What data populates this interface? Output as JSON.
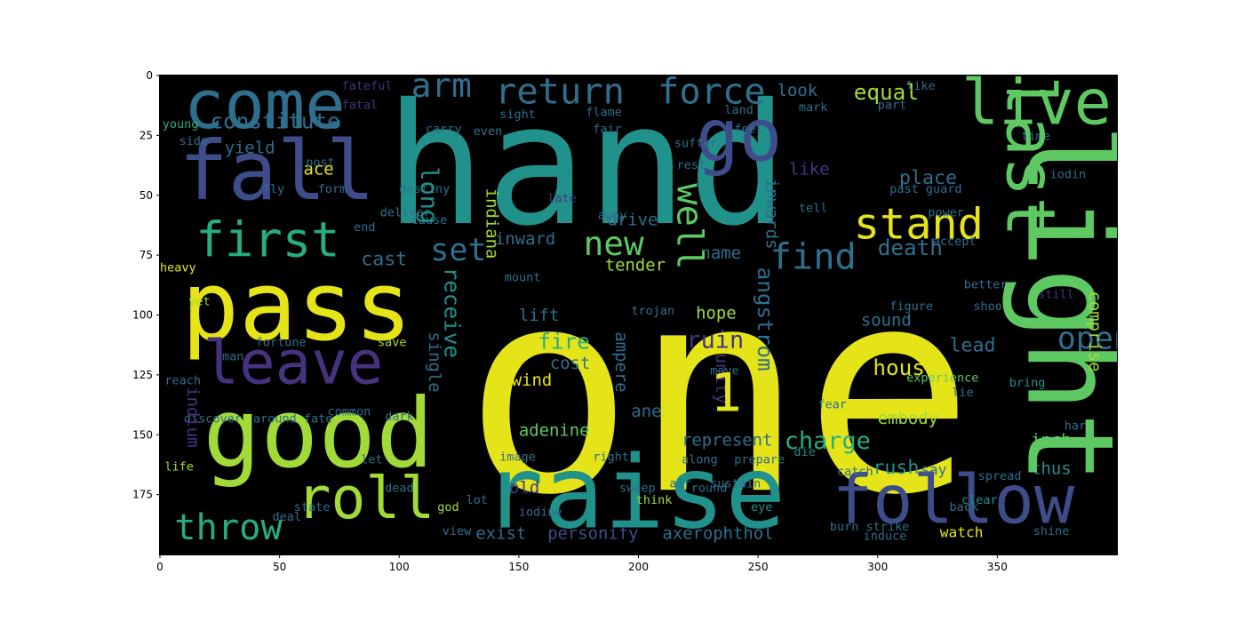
{
  "chart_data": {
    "type": "wordcloud",
    "title": "",
    "xlabel": "",
    "ylabel": "",
    "xlim": [
      0,
      400
    ],
    "ylim": [
      200,
      0
    ],
    "x_ticks": [
      0,
      50,
      100,
      150,
      200,
      250,
      300,
      350
    ],
    "y_ticks": [
      0,
      25,
      50,
      75,
      100,
      125,
      150,
      175
    ],
    "background_color": "#000000",
    "words": [
      {
        "text": "hand",
        "x": 94,
        "y": 7,
        "size": 70,
        "color": "#21918c"
      },
      {
        "text": "one",
        "x": 127,
        "y": 81,
        "size": 118,
        "color": "#e5e419"
      },
      {
        "text": "pass",
        "x": 9,
        "y": 79,
        "size": 40,
        "color": "#e5e419"
      },
      {
        "text": "good",
        "x": 18,
        "y": 132,
        "size": 40,
        "color": "#a2da37"
      },
      {
        "text": "raise",
        "x": 135,
        "y": 156,
        "size": 42,
        "color": "#21918c"
      },
      {
        "text": "fall",
        "x": 8,
        "y": 25,
        "size": 34,
        "color": "#3e4c8a"
      },
      {
        "text": "come",
        "x": 10,
        "y": 0,
        "size": 28,
        "color": "#2e6f8e"
      },
      {
        "text": "go",
        "x": 224,
        "y": 12,
        "size": 30,
        "color": "#3e4c8a"
      },
      {
        "text": "live",
        "x": 335,
        "y": 0,
        "size": 26,
        "color": "#5ec962"
      },
      {
        "text": "leave",
        "x": 18,
        "y": 109,
        "size": 25,
        "color": "#46337f"
      },
      {
        "text": "first",
        "x": 15,
        "y": 60,
        "size": 20,
        "color": "#27ad81"
      },
      {
        "text": "roll",
        "x": 57,
        "y": 166,
        "size": 24,
        "color": "#a2da37"
      },
      {
        "text": "follow",
        "x": 281,
        "y": 165,
        "size": 28,
        "color": "#3e4c8a"
      },
      {
        "text": "throw",
        "x": 6,
        "y": 182,
        "size": 15,
        "color": "#27ad81"
      },
      {
        "text": "return",
        "x": 140,
        "y": 0,
        "size": 15,
        "color": "#2e6f8e"
      },
      {
        "text": "force",
        "x": 208,
        "y": 0,
        "size": 15,
        "color": "#2e6f8e"
      },
      {
        "text": "arm",
        "x": 105,
        "y": -2,
        "size": 14,
        "color": "#2e6f8e"
      },
      {
        "text": "constitute",
        "x": 21,
        "y": 15,
        "size": 9,
        "color": "#2e6f8e"
      },
      {
        "text": "stand",
        "x": 290,
        "y": 54,
        "size": 18,
        "color": "#e5e419"
      },
      {
        "text": "equal",
        "x": 290,
        "y": 3,
        "size": 9,
        "color": "#a2da37"
      },
      {
        "text": "look",
        "x": 258,
        "y": 3,
        "size": 7,
        "color": "#2e6f8e"
      },
      {
        "text": "find",
        "x": 255,
        "y": 69,
        "size": 15,
        "color": "#2e6f8e"
      },
      {
        "text": "new",
        "x": 177,
        "y": 64,
        "size": 14,
        "color": "#5ec962"
      },
      {
        "text": "set",
        "x": 113,
        "y": 67,
        "size": 13,
        "color": "#2e6f8e"
      },
      {
        "text": "cast",
        "x": 84,
        "y": 73,
        "size": 8,
        "color": "#2e6f8e"
      },
      {
        "text": "death",
        "x": 300,
        "y": 68,
        "size": 9,
        "color": "#2e6f8e"
      },
      {
        "text": "open",
        "x": 375,
        "y": 104,
        "size": 13,
        "color": "#2e6f8e"
      },
      {
        "text": "house",
        "x": 298,
        "y": 118,
        "size": 9,
        "color": "#e5e419"
      },
      {
        "text": "charge",
        "x": 261,
        "y": 148,
        "size": 10,
        "color": "#27ad81"
      },
      {
        "text": "fire",
        "x": 158,
        "y": 107,
        "size": 9,
        "color": "#27ad81"
      },
      {
        "text": "ruin",
        "x": 220,
        "y": 106,
        "size": 10,
        "color": "#46337f"
      },
      {
        "text": "wind",
        "x": 147,
        "y": 124,
        "size": 7,
        "color": "#e5e419"
      },
      {
        "text": "cost",
        "x": 163,
        "y": 117,
        "size": 7,
        "color": "#2e6f8e"
      },
      {
        "text": "lift",
        "x": 150,
        "y": 97,
        "size": 7,
        "color": "#2e6f8e"
      },
      {
        "text": "sound",
        "x": 293,
        "y": 99,
        "size": 7,
        "color": "#2e6f8e"
      },
      {
        "text": "hope",
        "x": 224,
        "y": 96,
        "size": 7,
        "color": "#a2da37"
      },
      {
        "text": "lead",
        "x": 330,
        "y": 109,
        "size": 8,
        "color": "#2e6f8e"
      },
      {
        "text": "embody",
        "x": 300,
        "y": 140,
        "size": 7,
        "color": "#a2da37"
      },
      {
        "text": "inch",
        "x": 364,
        "y": 149,
        "size": 7,
        "color": "#5ec962"
      },
      {
        "text": "thus",
        "x": 364,
        "y": 161,
        "size": 7,
        "color": "#21918c"
      },
      {
        "text": "rush",
        "x": 298,
        "y": 160,
        "size": 8,
        "color": "#21918c"
      },
      {
        "text": "represent",
        "x": 218,
        "y": 149,
        "size": 7,
        "color": "#2e6f8e"
      },
      {
        "text": "adenine",
        "x": 150,
        "y": 145,
        "size": 7,
        "color": "#5ec962"
      },
      {
        "text": "exist",
        "x": 132,
        "y": 188,
        "size": 7,
        "color": "#2e6f8e"
      },
      {
        "text": "personify",
        "x": 162,
        "y": 188,
        "size": 7,
        "color": "#3e4c8a"
      },
      {
        "text": "axerophthol",
        "x": 210,
        "y": 188,
        "size": 7,
        "color": "#2e6f8e"
      },
      {
        "text": "old",
        "x": 146,
        "y": 169,
        "size": 7,
        "color": "#46337f"
      },
      {
        "text": "tender",
        "x": 186,
        "y": 76,
        "size": 7,
        "color": "#a2da37"
      },
      {
        "text": "name",
        "x": 226,
        "y": 71,
        "size": 7,
        "color": "#2e6f8e"
      },
      {
        "text": "place",
        "x": 309,
        "y": 39,
        "size": 8,
        "color": "#2e6f8e"
      },
      {
        "text": "like",
        "x": 263,
        "y": 36,
        "size": 7,
        "color": "#46337f"
      },
      {
        "text": "ace",
        "x": 60,
        "y": 36,
        "size": 7,
        "color": "#e5e419"
      },
      {
        "text": "yield",
        "x": 27,
        "y": 27,
        "size": 7,
        "color": "#2e6f8e"
      },
      {
        "text": "inward",
        "x": 140,
        "y": 65,
        "size": 7,
        "color": "#2e6f8e"
      },
      {
        "text": "drive",
        "x": 187,
        "y": 57,
        "size": 7,
        "color": "#2e6f8e"
      },
      {
        "text": "ane",
        "x": 197,
        "y": 137,
        "size": 7,
        "color": "#2e6f8e"
      },
      {
        "text": "watch",
        "x": 326,
        "y": 188,
        "size": 6,
        "color": "#e5e419"
      },
      {
        "text": "shine",
        "x": 365,
        "y": 188,
        "size": 5,
        "color": "#2e6f8e"
      },
      {
        "text": "say",
        "x": 318,
        "y": 162,
        "size": 6,
        "color": "#2e6f8e"
      },
      {
        "text": "spread",
        "x": 342,
        "y": 165,
        "size": 5,
        "color": "#2e6f8e"
      },
      {
        "text": "clear",
        "x": 335,
        "y": 175,
        "size": 5,
        "color": "#21918c"
      },
      {
        "text": "back",
        "x": 330,
        "y": 178,
        "size": 5,
        "color": "#2e6f8e"
      },
      {
        "text": "bring",
        "x": 355,
        "y": 126,
        "size": 5,
        "color": "#21918c"
      },
      {
        "text": "hard",
        "x": 378,
        "y": 144,
        "size": 5,
        "color": "#2e6f8e"
      },
      {
        "text": "lie",
        "x": 331,
        "y": 130,
        "size": 5,
        "color": "#2e6f8e"
      },
      {
        "text": "experience",
        "x": 312,
        "y": 124,
        "size": 5,
        "color": "#5ec962"
      },
      {
        "text": "fear",
        "x": 275,
        "y": 135,
        "size": 5,
        "color": "#2e6f8e"
      },
      {
        "text": "die",
        "x": 265,
        "y": 155,
        "size": 5,
        "color": "#21918c"
      },
      {
        "text": "catch",
        "x": 283,
        "y": 163,
        "size": 5,
        "color": "#2e6f8e"
      },
      {
        "text": "eye",
        "x": 247,
        "y": 178,
        "size": 5,
        "color": "#21918c"
      },
      {
        "text": "think",
        "x": 199,
        "y": 175,
        "size": 5,
        "color": "#a2da37"
      },
      {
        "text": "god",
        "x": 116,
        "y": 178,
        "size": 5,
        "color": "#a2da37"
      },
      {
        "text": "dead",
        "x": 94,
        "y": 170,
        "size": 5,
        "color": "#2e6f8e"
      },
      {
        "text": "state",
        "x": 56,
        "y": 178,
        "size": 5,
        "color": "#2e6f8e"
      },
      {
        "text": "deal",
        "x": 47,
        "y": 182,
        "size": 5,
        "color": "#2e6f8e"
      },
      {
        "text": "life",
        "x": 2,
        "y": 161,
        "size": 5,
        "color": "#a2da37"
      },
      {
        "text": "common",
        "x": 70,
        "y": 138,
        "size": 5,
        "color": "#2e6f8e"
      },
      {
        "text": "dark",
        "x": 94,
        "y": 140,
        "size": 5,
        "color": "#2e6f8e"
      },
      {
        "text": "discover",
        "x": 10,
        "y": 141,
        "size": 5,
        "color": "#2e6f8e"
      },
      {
        "text": "around fate",
        "x": 39,
        "y": 141,
        "size": 5,
        "color": "#2e6f8e"
      },
      {
        "text": "fortune",
        "x": 40,
        "y": 109,
        "size": 5,
        "color": "#2e6f8e"
      },
      {
        "text": "save",
        "x": 91,
        "y": 109,
        "size": 5,
        "color": "#a2da37"
      },
      {
        "text": "reach",
        "x": 2,
        "y": 125,
        "size": 5,
        "color": "#2e6f8e"
      },
      {
        "text": "heavy",
        "x": 0,
        "y": 78,
        "size": 5,
        "color": "#e5e419"
      },
      {
        "text": "fly",
        "x": 43,
        "y": 45,
        "size": 5,
        "color": "#2e6f8e"
      },
      {
        "text": "post",
        "x": 61,
        "y": 34,
        "size": 5,
        "color": "#2e6f8e"
      },
      {
        "text": "form",
        "x": 66,
        "y": 45,
        "size": 5,
        "color": "#2e6f8e"
      },
      {
        "text": "side",
        "x": 8,
        "y": 25,
        "size": 5,
        "color": "#2e6f8e"
      },
      {
        "text": "young",
        "x": 1,
        "y": 18,
        "size": 5,
        "color": "#27ad81"
      },
      {
        "text": "carry",
        "x": 111,
        "y": 20,
        "size": 5,
        "color": "#2e6f8e"
      },
      {
        "text": "even",
        "x": 131,
        "y": 21,
        "size": 5,
        "color": "#2e6f8e"
      },
      {
        "text": "sight",
        "x": 142,
        "y": 14,
        "size": 5,
        "color": "#2e6f8e"
      },
      {
        "text": "flame",
        "x": 178,
        "y": 13,
        "size": 5,
        "color": "#2e6f8e"
      },
      {
        "text": "fair",
        "x": 181,
        "y": 20,
        "size": 5,
        "color": "#2e6f8e"
      },
      {
        "text": "land",
        "x": 236,
        "y": 12,
        "size": 5,
        "color": "#2e6f8e"
      },
      {
        "text": "feel",
        "x": 240,
        "y": 20,
        "size": 5,
        "color": "#2e6f8e"
      },
      {
        "text": "mark",
        "x": 267,
        "y": 11,
        "size": 5,
        "color": "#2e6f8e"
      },
      {
        "text": "part",
        "x": 300,
        "y": 10,
        "size": 5,
        "color": "#2e6f8e"
      },
      {
        "text": "time",
        "x": 360,
        "y": 23,
        "size": 5,
        "color": "#2e6f8e"
      },
      {
        "text": "rest",
        "x": 216,
        "y": 35,
        "size": 5,
        "color": "#2e6f8e"
      },
      {
        "text": "suffer",
        "x": 215,
        "y": 26,
        "size": 5,
        "color": "#2e6f8e"
      },
      {
        "text": "late",
        "x": 162,
        "y": 49,
        "size": 5,
        "color": "#46337f"
      },
      {
        "text": "away",
        "x": 183,
        "y": 56,
        "size": 5,
        "color": "#2e6f8e"
      },
      {
        "text": "tell",
        "x": 267,
        "y": 53,
        "size": 5,
        "color": "#2e6f8e"
      },
      {
        "text": "power",
        "x": 321,
        "y": 55,
        "size": 5,
        "color": "#2e6f8e"
      },
      {
        "text": "past guard",
        "x": 305,
        "y": 45,
        "size": 5,
        "color": "#2e6f8e"
      },
      {
        "text": "accept",
        "x": 323,
        "y": 67,
        "size": 5,
        "color": "#2e6f8e"
      },
      {
        "text": "better",
        "x": 336,
        "y": 85,
        "size": 5,
        "color": "#2e6f8e"
      },
      {
        "text": "shoot",
        "x": 340,
        "y": 94,
        "size": 5,
        "color": "#2e6f8e"
      },
      {
        "text": "still",
        "x": 367,
        "y": 89,
        "size": 5,
        "color": "#46337f"
      },
      {
        "text": "figure",
        "x": 305,
        "y": 94,
        "size": 5,
        "color": "#2e6f8e"
      },
      {
        "text": "trojan",
        "x": 197,
        "y": 96,
        "size": 5,
        "color": "#2e6f8e"
      },
      {
        "text": "mount",
        "x": 144,
        "y": 82,
        "size": 5,
        "color": "#2e6f8e"
      },
      {
        "text": "move",
        "x": 230,
        "y": 121,
        "size": 5,
        "color": "#2e6f8e"
      },
      {
        "text": "image",
        "x": 142,
        "y": 157,
        "size": 5,
        "color": "#2e6f8e"
      },
      {
        "text": "right",
        "x": 181,
        "y": 157,
        "size": 5,
        "color": "#2e6f8e"
      },
      {
        "text": "along",
        "x": 218,
        "y": 158,
        "size": 5,
        "color": "#2e6f8e"
      },
      {
        "text": "lot",
        "x": 128,
        "y": 175,
        "size": 5,
        "color": "#2e6f8e"
      },
      {
        "text": "iodine",
        "x": 150,
        "y": 180,
        "size": 5,
        "color": "#2e6f8e"
      },
      {
        "text": "view",
        "x": 118,
        "y": 188,
        "size": 5,
        "color": "#2e6f8e"
      },
      {
        "text": "induce",
        "x": 294,
        "y": 190,
        "size": 5,
        "color": "#2e6f8e"
      },
      {
        "text": "burn strike",
        "x": 280,
        "y": 186,
        "size": 5,
        "color": "#2e6f8e"
      },
      {
        "text": "let",
        "x": 84,
        "y": 158,
        "size": 5,
        "color": "#2e6f8e"
      },
      {
        "text": "man",
        "x": 26,
        "y": 115,
        "size": 5,
        "color": "#2e6f8e"
      },
      {
        "text": "yet",
        "x": 12,
        "y": 92,
        "size": 5,
        "color": "#a2da37"
      },
      {
        "text": "end",
        "x": 81,
        "y": 61,
        "size": 5,
        "color": "#2e6f8e"
      },
      {
        "text": "cause",
        "x": 105,
        "y": 58,
        "size": 5,
        "color": "#2e6f8e"
      },
      {
        "text": "deliver",
        "x": 92,
        "y": 55,
        "size": 5,
        "color": "#2e6f8e"
      },
      {
        "text": "destiny",
        "x": 100,
        "y": 45,
        "size": 5,
        "color": "#2e6f8e"
      },
      {
        "text": "fatal",
        "x": 76,
        "y": 10,
        "size": 5,
        "color": "#46337f"
      },
      {
        "text": "fateful",
        "x": 76,
        "y": 2,
        "size": 5,
        "color": "#46337f"
      },
      {
        "text": "prepare",
        "x": 240,
        "y": 158,
        "size": 5,
        "color": "#2e6f8e"
      },
      {
        "text": "sustain",
        "x": 230,
        "y": 168,
        "size": 5,
        "color": "#2e6f8e"
      },
      {
        "text": "round",
        "x": 222,
        "y": 170,
        "size": 5,
        "color": "#2e6f8e"
      },
      {
        "text": "air",
        "x": 213,
        "y": 168,
        "size": 5,
        "color": "#2e6f8e"
      },
      {
        "text": "sweep",
        "x": 192,
        "y": 170,
        "size": 5,
        "color": "#2e6f8e"
      },
      {
        "text": "iodin",
        "x": 372,
        "y": 39,
        "size": 5,
        "color": "#2e6f8e"
      },
      {
        "text": "like",
        "x": 312,
        "y": 2,
        "size": 5,
        "color": "#2e6f8e"
      }
    ],
    "vertical_words": [
      {
        "text": "light",
        "x": 352,
        "y": 20,
        "size": 50,
        "color": "#5ec962"
      },
      {
        "text": "last",
        "x": 348,
        "y": 0,
        "size": 28,
        "color": "#5ec962"
      },
      {
        "text": "well",
        "x": 213,
        "y": 45,
        "size": 15,
        "color": "#5ec962"
      },
      {
        "text": "long",
        "x": 107,
        "y": 38,
        "size": 10,
        "color": "#21918c"
      },
      {
        "text": "indiana",
        "x": 135,
        "y": 47,
        "size": 7,
        "color": "#a2da37"
      },
      {
        "text": "angstrom",
        "x": 248,
        "y": 80,
        "size": 9,
        "color": "#2e6f8e"
      },
      {
        "text": "receive",
        "x": 117,
        "y": 80,
        "size": 9,
        "color": "#21918c"
      },
      {
        "text": "single",
        "x": 111,
        "y": 107,
        "size": 7,
        "color": "#2e6f8e"
      },
      {
        "text": "ampere",
        "x": 189,
        "y": 107,
        "size": 7,
        "color": "#2e6f8e"
      },
      {
        "text": "unity",
        "x": 231,
        "y": 116,
        "size": 7,
        "color": "#46337f"
      },
      {
        "text": "inwards",
        "x": 252,
        "y": 43,
        "size": 7,
        "color": "#2e6f8e"
      },
      {
        "text": "comprise",
        "x": 387,
        "y": 90,
        "size": 7,
        "color": "#a2da37"
      },
      {
        "text": "indium",
        "x": 10,
        "y": 130,
        "size": 7,
        "color": "#46337f"
      }
    ],
    "number_labels": [
      {
        "text": "1",
        "x": 230,
        "y": 123,
        "size": 22,
        "color": "#e5e419"
      }
    ]
  }
}
